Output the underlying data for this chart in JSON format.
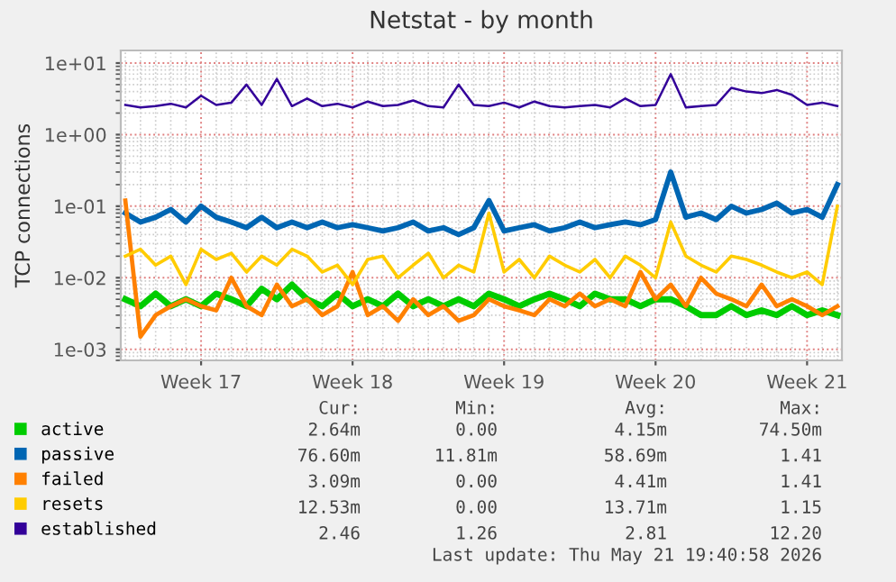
{
  "chart_data": {
    "type": "line",
    "title": "Netstat - by month",
    "ylabel": "TCP connections",
    "log": "y",
    "grid": true,
    "legend": "bottom left",
    "categories": [
      null,
      null,
      null,
      null,
      null,
      "Week 17",
      null,
      null,
      null,
      null,
      null,
      null,
      null,
      null,
      null,
      "Week 18",
      null,
      null,
      null,
      null,
      null,
      null,
      null,
      null,
      null,
      "Week 19",
      null,
      null,
      null,
      null,
      null,
      null,
      null,
      null,
      null,
      "Week 20",
      null,
      null,
      null,
      null,
      null,
      null,
      null,
      null,
      null,
      "Week 21",
      null,
      null
    ],
    "ylim": [
      0.0007,
      15
    ],
    "yticks": [
      {
        "value": 0.001,
        "label": "1e-03"
      },
      {
        "value": 0.01,
        "label": "1e-02"
      },
      {
        "value": 0.1,
        "label": "1e-01"
      },
      {
        "value": 1,
        "label": "1e+00"
      },
      {
        "value": 10,
        "label": "1e+01"
      }
    ],
    "series": [
      {
        "name": "active",
        "color": "#00cc00",
        "values": [
          0.005,
          0.004,
          0.006,
          0.004,
          0.005,
          0.004,
          0.006,
          0.005,
          0.004,
          0.007,
          0.005,
          0.008,
          0.005,
          0.004,
          0.006,
          0.004,
          0.005,
          0.004,
          0.006,
          0.004,
          0.005,
          0.004,
          0.005,
          0.004,
          0.006,
          0.005,
          0.004,
          0.005,
          0.006,
          0.005,
          0.004,
          0.006,
          0.005,
          0.005,
          0.004,
          0.005,
          0.005,
          0.004,
          0.003,
          0.003,
          0.004,
          0.003,
          0.0035,
          0.003,
          0.004,
          0.003,
          0.0035,
          0.003
        ]
      },
      {
        "name": "passive",
        "color": "#0066b3",
        "values": [
          0.08,
          0.06,
          0.07,
          0.09,
          0.06,
          0.1,
          0.07,
          0.06,
          0.05,
          0.07,
          0.05,
          0.06,
          0.05,
          0.06,
          0.05,
          0.055,
          0.05,
          0.045,
          0.05,
          0.06,
          0.045,
          0.05,
          0.04,
          0.05,
          0.12,
          0.045,
          0.05,
          0.055,
          0.045,
          0.05,
          0.06,
          0.05,
          0.055,
          0.06,
          0.055,
          0.065,
          0.3,
          0.07,
          0.08,
          0.065,
          0.1,
          0.08,
          0.09,
          0.11,
          0.08,
          0.09,
          0.07,
          0.2
        ]
      },
      {
        "name": "failed",
        "color": "#ff8000",
        "values": [
          0.12,
          0.0015,
          0.003,
          0.004,
          0.005,
          0.004,
          0.0035,
          0.01,
          0.004,
          0.003,
          0.008,
          0.004,
          0.005,
          0.003,
          0.004,
          0.012,
          0.003,
          0.004,
          0.0025,
          0.005,
          0.003,
          0.004,
          0.0025,
          0.003,
          0.005,
          0.004,
          0.0035,
          0.003,
          0.005,
          0.004,
          0.006,
          0.004,
          0.005,
          0.004,
          0.012,
          0.005,
          0.008,
          0.004,
          0.01,
          0.006,
          0.005,
          0.004,
          0.008,
          0.004,
          0.005,
          0.004,
          0.003,
          0.004
        ]
      },
      {
        "name": "resets",
        "color": "#ffcc00",
        "values": [
          0.02,
          0.025,
          0.015,
          0.02,
          0.008,
          0.025,
          0.018,
          0.022,
          0.012,
          0.02,
          0.015,
          0.025,
          0.02,
          0.012,
          0.015,
          0.008,
          0.018,
          0.02,
          0.01,
          0.015,
          0.022,
          0.01,
          0.015,
          0.012,
          0.08,
          0.012,
          0.018,
          0.01,
          0.02,
          0.015,
          0.012,
          0.018,
          0.01,
          0.02,
          0.015,
          0.01,
          0.06,
          0.02,
          0.015,
          0.012,
          0.02,
          0.018,
          0.015,
          0.012,
          0.01,
          0.012,
          0.008,
          0.1
        ]
      },
      {
        "name": "established",
        "color": "#330099",
        "values": [
          2.6,
          2.4,
          2.5,
          2.7,
          2.4,
          3.5,
          2.6,
          2.8,
          5.0,
          2.6,
          6.0,
          2.5,
          3.2,
          2.5,
          2.7,
          2.4,
          2.9,
          2.5,
          2.6,
          3.0,
          2.5,
          2.4,
          5.0,
          2.6,
          2.5,
          2.8,
          2.4,
          2.9,
          2.5,
          2.4,
          2.5,
          2.6,
          2.4,
          3.2,
          2.5,
          2.6,
          7.0,
          2.4,
          2.5,
          2.6,
          4.5,
          4.0,
          3.8,
          4.2,
          3.6,
          2.6,
          2.8,
          2.5
        ]
      }
    ],
    "annotations": [
      "Cur:",
      "Min:",
      "Avg:",
      "Max:",
      "2.64m",
      "0.00",
      "4.15m",
      "74.50m",
      "76.60m",
      "11.81m",
      "58.69m",
      "1.41",
      "3.09m",
      "0.00",
      "4.41m",
      "1.41",
      "12.53m",
      "0.00",
      "13.71m",
      "1.15",
      "2.46",
      "1.26",
      "2.81",
      "12.20",
      "Last update: Thu May 21 19:40:58 2026"
    ]
  }
}
